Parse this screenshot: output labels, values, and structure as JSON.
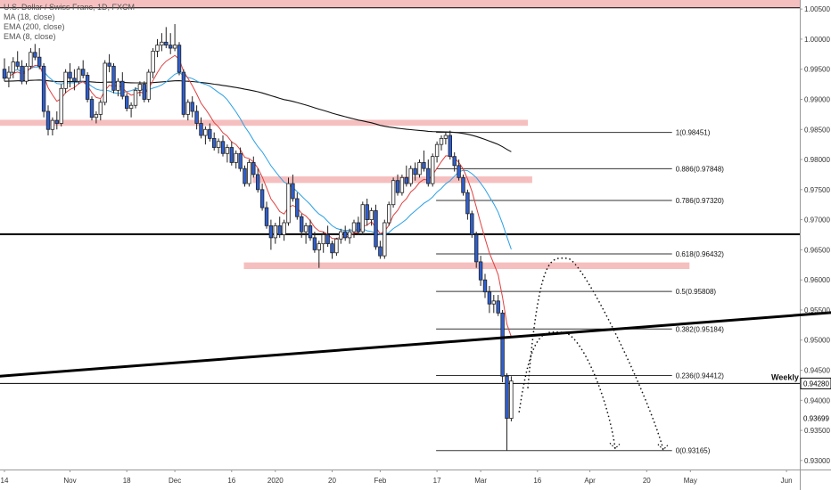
{
  "legend": {
    "symbol": "U.S. Dollar / Swiss Franc, 1D, FXCM",
    "ma": "MA (18, close)",
    "ema200": "EMA (200, close)",
    "ema8": "EMA (8, close)"
  },
  "weekly_label": "Weekly",
  "chart_data": {
    "type": "candlestick",
    "title": "U.S. Dollar / Swiss Franc, 1D, FXCM",
    "y_axis": {
      "range": [
        0.9285,
        1.0065
      ],
      "ticks": [
        "1.00500",
        "1.00000",
        "0.99500",
        "0.99000",
        "0.98500",
        "0.98000",
        "0.97500",
        "0.97000",
        "0.96500",
        "0.96000",
        "0.95500",
        "0.95000",
        "0.94500",
        "0.94000",
        "0.93500",
        "0.93000"
      ],
      "tick_values": [
        1.005,
        1.0,
        0.995,
        0.99,
        0.985,
        0.98,
        0.975,
        0.97,
        0.965,
        0.96,
        0.955,
        0.95,
        0.945,
        0.94,
        0.935,
        0.93
      ],
      "highlighted": [
        {
          "label": "0.94280",
          "value": 0.9428
        },
        {
          "label": "0.93699",
          "value": 0.93699
        }
      ]
    },
    "x_axis": {
      "labels": [
        "14",
        "Nov",
        "18",
        "Dec",
        "16",
        "2020",
        "20",
        "Feb",
        "17",
        "Mar",
        "16",
        "Apr",
        "20",
        "May",
        "Jun"
      ],
      "label_bars": [
        0,
        15,
        28,
        39,
        52,
        62,
        75,
        86,
        99,
        109,
        122,
        134,
        147,
        157,
        179
      ],
      "total_bars": 183
    },
    "fibonacci": {
      "bar_start": 99,
      "bar_end": 153,
      "levels": [
        {
          "label": "1(0.98451)",
          "value": 0.98451
        },
        {
          "label": "0.886(0.97848)",
          "value": 0.97848
        },
        {
          "label": "0.786(0.97320)",
          "value": 0.9732
        },
        {
          "label": "0.618(0.96432)",
          "value": 0.96432
        },
        {
          "label": "0.5(0.95808)",
          "value": 0.95808
        },
        {
          "label": "0.382(0.95184)",
          "value": 0.95184
        },
        {
          "label": "0.236(0.94412)",
          "value": 0.94412
        },
        {
          "label": "0(0.93165)",
          "value": 0.93165
        }
      ]
    },
    "zones": [
      {
        "bar_start": -1,
        "bar_end": 190,
        "from": 1.0052,
        "to": 1.0078,
        "color": "#f4b4b4"
      },
      {
        "bar_start": -1,
        "bar_end": 120,
        "from": 0.9856,
        "to": 0.9866,
        "color": "#f4b4b4"
      },
      {
        "bar_start": 57,
        "bar_end": 121,
        "from": 0.9761,
        "to": 0.9772,
        "color": "#f4b4b4"
      },
      {
        "bar_start": 55,
        "bar_end": 157,
        "from": 0.9618,
        "to": 0.9629,
        "color": "#f4b4b4"
      }
    ],
    "horizontal_lines": [
      {
        "value": 0.9676,
        "width": 2,
        "color": "#000000"
      },
      {
        "value": 0.9428,
        "width": 1,
        "color": "#000000"
      },
      {
        "value": 1.0052,
        "width": 1,
        "color": "#000000"
      }
    ],
    "trendline": {
      "from": {
        "bar": -1,
        "value": 0.944
      },
      "to": {
        "bar": 190,
        "value": 0.9546
      },
      "width": 3
    },
    "projections": [
      {
        "from": {
          "bar": 118,
          "value": 0.938
        },
        "peak": {
          "bar": 128,
          "value": 0.9513
        },
        "to": {
          "bar": 140,
          "value": 0.932
        }
      },
      {
        "from": {
          "bar": 120,
          "value": 0.942
        },
        "peak": {
          "bar": 129,
          "value": 0.9636
        },
        "to": {
          "bar": 151,
          "value": 0.9318
        }
      }
    ],
    "ohlc": [
      [
        0.995,
        0.9968,
        0.993,
        0.9935
      ],
      [
        0.9935,
        0.9955,
        0.992,
        0.9945
      ],
      [
        0.9945,
        0.997,
        0.9935,
        0.9962
      ],
      [
        0.9962,
        0.998,
        0.995,
        0.9955
      ],
      [
        0.9955,
        0.9965,
        0.9925,
        0.993
      ],
      [
        0.993,
        0.996,
        0.9925,
        0.9955
      ],
      [
        0.9955,
        0.9985,
        0.995,
        0.9978
      ],
      [
        0.9978,
        0.9992,
        0.9965,
        0.997
      ],
      [
        0.997,
        0.9985,
        0.995,
        0.9955
      ],
      [
        0.9955,
        0.996,
        0.987,
        0.988
      ],
      [
        0.988,
        0.989,
        0.984,
        0.985
      ],
      [
        0.985,
        0.987,
        0.984,
        0.9865
      ],
      [
        0.9865,
        0.988,
        0.985,
        0.986
      ],
      [
        0.986,
        0.9925,
        0.9855,
        0.9918
      ],
      [
        0.9918,
        0.995,
        0.991,
        0.9945
      ],
      [
        0.9945,
        0.996,
        0.992,
        0.9935
      ],
      [
        0.9935,
        0.995,
        0.9915,
        0.993
      ],
      [
        0.993,
        0.9955,
        0.9925,
        0.995
      ],
      [
        0.995,
        0.9965,
        0.9935,
        0.994
      ],
      [
        0.994,
        0.9945,
        0.9895,
        0.99
      ],
      [
        0.99,
        0.9905,
        0.9865,
        0.987
      ],
      [
        0.987,
        0.988,
        0.986,
        0.9875
      ],
      [
        0.9875,
        0.99,
        0.9865,
        0.9895
      ],
      [
        0.9895,
        0.9965,
        0.989,
        0.996
      ],
      [
        0.996,
        0.9975,
        0.9945,
        0.9955
      ],
      [
        0.9955,
        0.996,
        0.991,
        0.9915
      ],
      [
        0.9915,
        0.9935,
        0.9905,
        0.993
      ],
      [
        0.993,
        0.9945,
        0.99,
        0.9905
      ],
      [
        0.9905,
        0.991,
        0.988,
        0.9885
      ],
      [
        0.9885,
        0.9895,
        0.987,
        0.989
      ],
      [
        0.989,
        0.992,
        0.9885,
        0.9915
      ],
      [
        0.9915,
        0.993,
        0.9905,
        0.9925
      ],
      [
        0.9925,
        0.993,
        0.9895,
        0.99
      ],
      [
        0.99,
        0.995,
        0.9895,
        0.9945
      ],
      [
        0.9945,
        0.9985,
        0.9935,
        0.998
      ],
      [
        0.998,
        1.0,
        0.997,
        0.999
      ],
      [
        0.999,
        1.001,
        0.998,
        0.9995
      ],
      [
        0.9995,
        1.002,
        0.9985,
        0.999
      ],
      [
        0.999,
        1.001,
        0.9975,
        0.9985
      ],
      [
        0.9985,
        1.0025,
        0.998,
        0.999
      ],
      [
        0.999,
        0.9995,
        0.994,
        0.9945
      ],
      [
        0.9945,
        0.995,
        0.987,
        0.9875
      ],
      [
        0.9875,
        0.99,
        0.9865,
        0.9895
      ],
      [
        0.9895,
        0.9905,
        0.987,
        0.988
      ],
      [
        0.988,
        0.989,
        0.985,
        0.986
      ],
      [
        0.986,
        0.987,
        0.9835,
        0.984
      ],
      [
        0.984,
        0.9855,
        0.9825,
        0.985
      ],
      [
        0.985,
        0.986,
        0.983,
        0.9835
      ],
      [
        0.9835,
        0.9845,
        0.9815,
        0.982
      ],
      [
        0.982,
        0.9835,
        0.981,
        0.983
      ],
      [
        0.983,
        0.984,
        0.9805,
        0.981
      ],
      [
        0.981,
        0.9825,
        0.9795,
        0.982
      ],
      [
        0.982,
        0.983,
        0.979,
        0.9795
      ],
      [
        0.9795,
        0.9815,
        0.9785,
        0.981
      ],
      [
        0.981,
        0.982,
        0.978,
        0.9785
      ],
      [
        0.9785,
        0.979,
        0.9755,
        0.976
      ],
      [
        0.976,
        0.98,
        0.9755,
        0.9795
      ],
      [
        0.9795,
        0.9805,
        0.977,
        0.9775
      ],
      [
        0.9775,
        0.9785,
        0.9745,
        0.975
      ],
      [
        0.975,
        0.976,
        0.9715,
        0.972
      ],
      [
        0.972,
        0.973,
        0.9685,
        0.969
      ],
      [
        0.969,
        0.97,
        0.965,
        0.967
      ],
      [
        0.967,
        0.9695,
        0.966,
        0.969
      ],
      [
        0.969,
        0.9705,
        0.967,
        0.9675
      ],
      [
        0.9675,
        0.97,
        0.9665,
        0.9695
      ],
      [
        0.9695,
        0.977,
        0.969,
        0.976
      ],
      [
        0.976,
        0.9775,
        0.973,
        0.9735
      ],
      [
        0.9735,
        0.9745,
        0.97,
        0.9705
      ],
      [
        0.9705,
        0.971,
        0.967,
        0.968
      ],
      [
        0.968,
        0.9695,
        0.966,
        0.969
      ],
      [
        0.969,
        0.97,
        0.9665,
        0.967
      ],
      [
        0.967,
        0.968,
        0.9645,
        0.965
      ],
      [
        0.965,
        0.9665,
        0.962,
        0.966
      ],
      [
        0.966,
        0.968,
        0.9645,
        0.9675
      ],
      [
        0.9675,
        0.969,
        0.9655,
        0.966
      ],
      [
        0.966,
        0.9665,
        0.9635,
        0.9645
      ],
      [
        0.9645,
        0.967,
        0.964,
        0.9668
      ],
      [
        0.9668,
        0.9685,
        0.966,
        0.968
      ],
      [
        0.968,
        0.969,
        0.9665,
        0.967
      ],
      [
        0.967,
        0.9685,
        0.966,
        0.968
      ],
      [
        0.968,
        0.97,
        0.967,
        0.9695
      ],
      [
        0.9695,
        0.9705,
        0.9675,
        0.968
      ],
      [
        0.968,
        0.973,
        0.9675,
        0.9725
      ],
      [
        0.9725,
        0.9735,
        0.969,
        0.97
      ],
      [
        0.97,
        0.972,
        0.969,
        0.9715
      ],
      [
        0.9715,
        0.9725,
        0.965,
        0.9655
      ],
      [
        0.9655,
        0.9665,
        0.9635,
        0.964
      ],
      [
        0.964,
        0.97,
        0.9635,
        0.9695
      ],
      [
        0.9695,
        0.973,
        0.969,
        0.9725
      ],
      [
        0.9725,
        0.977,
        0.972,
        0.9765
      ],
      [
        0.9765,
        0.9775,
        0.974,
        0.9745
      ],
      [
        0.9745,
        0.9775,
        0.974,
        0.977
      ],
      [
        0.977,
        0.979,
        0.9755,
        0.976
      ],
      [
        0.976,
        0.979,
        0.9755,
        0.9785
      ],
      [
        0.9785,
        0.9795,
        0.9765,
        0.9775
      ],
      [
        0.9775,
        0.98,
        0.977,
        0.9795
      ],
      [
        0.9795,
        0.9815,
        0.978,
        0.9785
      ],
      [
        0.9785,
        0.98,
        0.9755,
        0.976
      ],
      [
        0.976,
        0.981,
        0.9755,
        0.9805
      ],
      [
        0.9805,
        0.983,
        0.9795,
        0.9825
      ],
      [
        0.9825,
        0.984,
        0.9815,
        0.9835
      ],
      [
        0.9835,
        0.9845,
        0.9825,
        0.984
      ],
      [
        0.984,
        0.9848,
        0.98,
        0.9805
      ],
      [
        0.9805,
        0.9812,
        0.978,
        0.979
      ],
      [
        0.979,
        0.98,
        0.9765,
        0.977
      ],
      [
        0.977,
        0.9775,
        0.974,
        0.9745
      ],
      [
        0.9745,
        0.975,
        0.97,
        0.971
      ],
      [
        0.971,
        0.9715,
        0.967,
        0.9675
      ],
      [
        0.9675,
        0.968,
        0.962,
        0.963
      ],
      [
        0.963,
        0.964,
        0.959,
        0.96
      ],
      [
        0.96,
        0.961,
        0.957,
        0.958
      ],
      [
        0.958,
        0.959,
        0.9545,
        0.956
      ],
      [
        0.956,
        0.9575,
        0.9545,
        0.9565
      ],
      [
        0.9565,
        0.9575,
        0.954,
        0.9545
      ],
      [
        0.9545,
        0.955,
        0.943,
        0.944
      ],
      [
        0.944,
        0.9445,
        0.9316,
        0.937
      ],
      [
        0.937,
        0.944,
        0.9365,
        0.9432
      ]
    ]
  }
}
